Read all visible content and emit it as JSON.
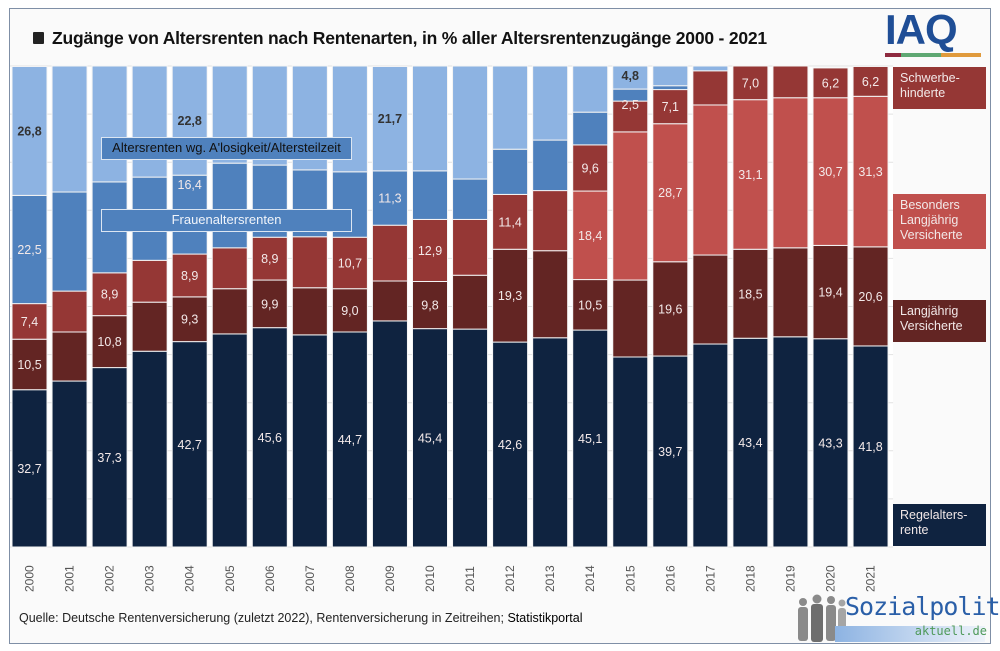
{
  "title": "Zugänge von Altersrenten nach Rentenarten, in % aller Altersrentenzugänge 2000 - 2021",
  "logos": {
    "iaq": "IAQ",
    "sozialpolitik_main": "Sozialpolitik-",
    "sozialpolitik_sub": "aktuell.de"
  },
  "source": {
    "text": "Quelle: Deutsche Rentenversicherung (zuletzt 2022), Rentenversicherung in Zeitreihen; ",
    "link": "Statistikportal"
  },
  "colors": {
    "regel": "#0f2340",
    "lang": "#632523",
    "schwer": "#953735",
    "besonders": "#c0504d",
    "frauen": "#4f81bd",
    "alos": "#8db3e2"
  },
  "chart_data": {
    "type": "bar",
    "stacked": true,
    "title": "Zugänge von Altersrenten nach Rentenarten, in % aller Altersrentenzugänge 2000 - 2021",
    "xlabel": "",
    "ylabel": "",
    "ylim": [
      0,
      100
    ],
    "grid": true,
    "legend_placement": "right",
    "categories": [
      "2000",
      "2001",
      "2002",
      "2003",
      "2004",
      "2005",
      "2006",
      "2007",
      "2008",
      "2009",
      "2010",
      "2011",
      "2012",
      "2013",
      "2014",
      "2015",
      "2016",
      "2017",
      "2018",
      "2019",
      "2020",
      "2021"
    ],
    "series": [
      {
        "key": "regel",
        "name": "Regelaltersrente",
        "legend": "Regelalters-\nrente",
        "color": "#0f2340",
        "values": [
          32.7,
          34.5,
          37.3,
          40.7,
          42.7,
          44.3,
          45.6,
          44.1,
          44.7,
          47.0,
          45.4,
          45.3,
          42.6,
          43.5,
          45.1,
          39.5,
          39.7,
          42.2,
          43.4,
          43.7,
          43.3,
          41.8
        ],
        "labels": [
          "32,7",
          null,
          "37,3",
          null,
          "42,7",
          null,
          "45,6",
          null,
          "44,7",
          null,
          "45,4",
          null,
          "42,6",
          null,
          "45,1",
          null,
          "39,7",
          null,
          "43,4",
          null,
          "43,3",
          "41,8"
        ]
      },
      {
        "key": "lang",
        "name": "Langjährig Versicherte",
        "legend": "Langjährig\nVersicherte",
        "color": "#632523",
        "values": [
          10.5,
          10.2,
          10.8,
          10.2,
          9.3,
          9.4,
          9.9,
          9.8,
          9.0,
          8.3,
          9.8,
          11.2,
          19.3,
          18.1,
          10.5,
          16.0,
          19.6,
          18.5,
          18.5,
          18.5,
          19.4,
          20.6
        ],
        "labels": [
          "10,5",
          null,
          "10,8",
          null,
          "9,3",
          null,
          "9,9",
          null,
          "9,0",
          null,
          "9,8",
          null,
          "19,3",
          null,
          "10,5",
          null,
          "19,6",
          null,
          "18,5",
          null,
          "19,4",
          "20,6"
        ]
      },
      {
        "key": "besonders",
        "name": "Besonders Langjährig Versicherte",
        "legend": "Besonders\nLangjährig\nVersicherte",
        "color": "#c0504d",
        "values": [
          0,
          0,
          0,
          0,
          0,
          0,
          0,
          0,
          0,
          0,
          0,
          0,
          0,
          0,
          18.4,
          30.8,
          28.7,
          31.2,
          31.1,
          31.2,
          30.7,
          31.3
        ],
        "labels": [
          null,
          null,
          null,
          null,
          null,
          null,
          null,
          null,
          null,
          null,
          null,
          null,
          null,
          null,
          "18,4",
          null,
          "28,7",
          null,
          "31,1",
          null,
          "30,7",
          "31,3"
        ]
      },
      {
        "key": "schwer",
        "name": "Schwerbehinderte",
        "legend": "Schwerbe-\nhinderte",
        "color": "#953735",
        "values": [
          7.4,
          8.5,
          8.9,
          8.7,
          8.9,
          8.5,
          8.9,
          10.6,
          10.7,
          11.6,
          12.9,
          11.6,
          11.4,
          12.5,
          9.6,
          6.4,
          7.1,
          7.1,
          7.0,
          6.6,
          6.2,
          6.2
        ],
        "labels": [
          "7,4",
          null,
          "8,9",
          null,
          "8,9",
          null,
          "8,9",
          null,
          "10,7",
          null,
          "12,9",
          null,
          "11,4",
          null,
          "9,6",
          null,
          "7,1",
          null,
          "7,0",
          null,
          "6,2",
          "6,2"
        ]
      },
      {
        "key": "frauen",
        "name": "Frauenaltersrenten",
        "legend": "Frauenaltersrenten",
        "color": "#4f81bd",
        "values": [
          22.5,
          20.6,
          18.9,
          17.3,
          16.4,
          17.6,
          15.0,
          13.9,
          13.6,
          11.3,
          10.1,
          8.4,
          9.4,
          10.5,
          6.8,
          2.5,
          0.8,
          0,
          0,
          0,
          0,
          0
        ],
        "labels": [
          "22,5",
          null,
          null,
          null,
          "16,4",
          null,
          null,
          null,
          null,
          "11,3",
          null,
          null,
          null,
          null,
          null,
          "2,5",
          null,
          null,
          null,
          null,
          null,
          null
        ]
      },
      {
        "key": "alos",
        "name": "Altersrenten wg. A'losigkeit/Altersteilzeit",
        "legend": "Altersrenten wg. A'losigkeit/Altersteilzeit",
        "color": "#8db3e2",
        "values": [
          26.8,
          26.2,
          24.1,
          23.1,
          22.8,
          20.2,
          20.6,
          21.6,
          22.0,
          21.7,
          21.8,
          23.5,
          17.3,
          15.4,
          9.6,
          4.8,
          4.1,
          1.0,
          0,
          0,
          0,
          0
        ],
        "labels": [
          "26,8",
          null,
          null,
          null,
          "22,8",
          null,
          null,
          null,
          null,
          "21,7",
          null,
          null,
          null,
          null,
          null,
          "4,8",
          null,
          null,
          null,
          null,
          null,
          null
        ]
      }
    ]
  }
}
